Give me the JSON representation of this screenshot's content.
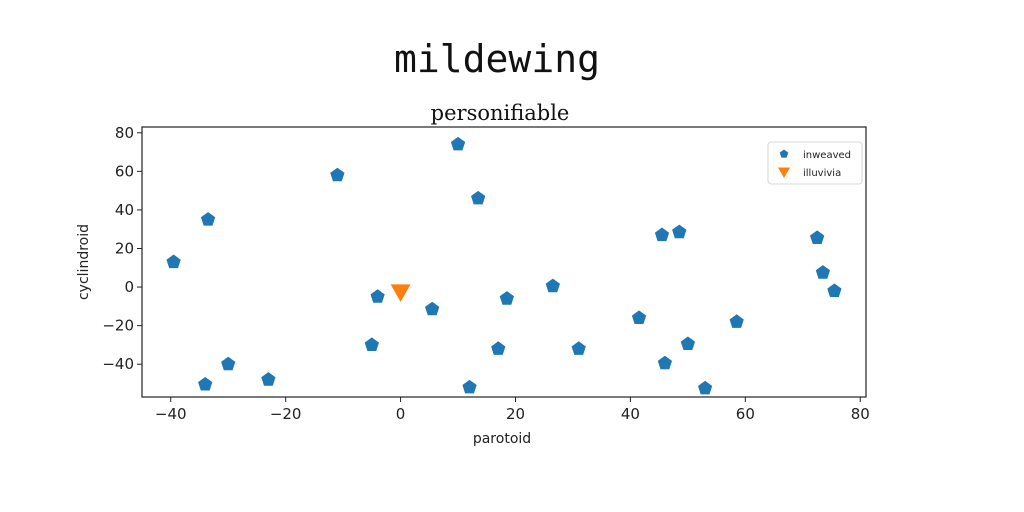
{
  "chart_data": {
    "type": "scatter",
    "suptitle": "mildewing",
    "title": "personifiable",
    "xlabel": "parotoid",
    "ylabel": "cyclindroid",
    "xlim": [
      -45,
      81
    ],
    "ylim": [
      -57,
      83
    ],
    "xticks": [
      -40,
      -20,
      0,
      20,
      40,
      60,
      80
    ],
    "yticks": [
      -40,
      -20,
      0,
      20,
      40,
      60,
      80
    ],
    "xtick_labels": [
      "−40",
      "−20",
      "0",
      "20",
      "40",
      "60",
      "80"
    ],
    "ytick_labels": [
      "−40",
      "−20",
      "0",
      "20",
      "40",
      "60",
      "80"
    ],
    "grid": false,
    "legend_position": "upper right",
    "series": [
      {
        "name": "inweaved",
        "marker": "pentagon",
        "color": "#1f77b4",
        "points": [
          [
            -39.5,
            13
          ],
          [
            -33.5,
            35
          ],
          [
            -34,
            -50.5
          ],
          [
            -30,
            -40
          ],
          [
            -23,
            -48
          ],
          [
            -11,
            58
          ],
          [
            -5,
            -30
          ],
          [
            -4,
            -5
          ],
          [
            5.5,
            -11.5
          ],
          [
            10,
            74
          ],
          [
            13.5,
            46
          ],
          [
            12,
            -52
          ],
          [
            17,
            -32
          ],
          [
            18.5,
            -6
          ],
          [
            26.5,
            0.5
          ],
          [
            31,
            -32
          ],
          [
            41.5,
            -16
          ],
          [
            45.5,
            27
          ],
          [
            48.5,
            28.5
          ],
          [
            46,
            -39.5
          ],
          [
            50,
            -29.5
          ],
          [
            53,
            -52.5
          ],
          [
            58.5,
            -18
          ],
          [
            72.5,
            25.5
          ],
          [
            73.5,
            7.5
          ],
          [
            75.5,
            -2
          ]
        ]
      },
      {
        "name": "illuvivia",
        "marker": "triangle-down",
        "color": "#ff7f0e",
        "points": [
          [
            0,
            -2.5
          ]
        ]
      }
    ]
  }
}
